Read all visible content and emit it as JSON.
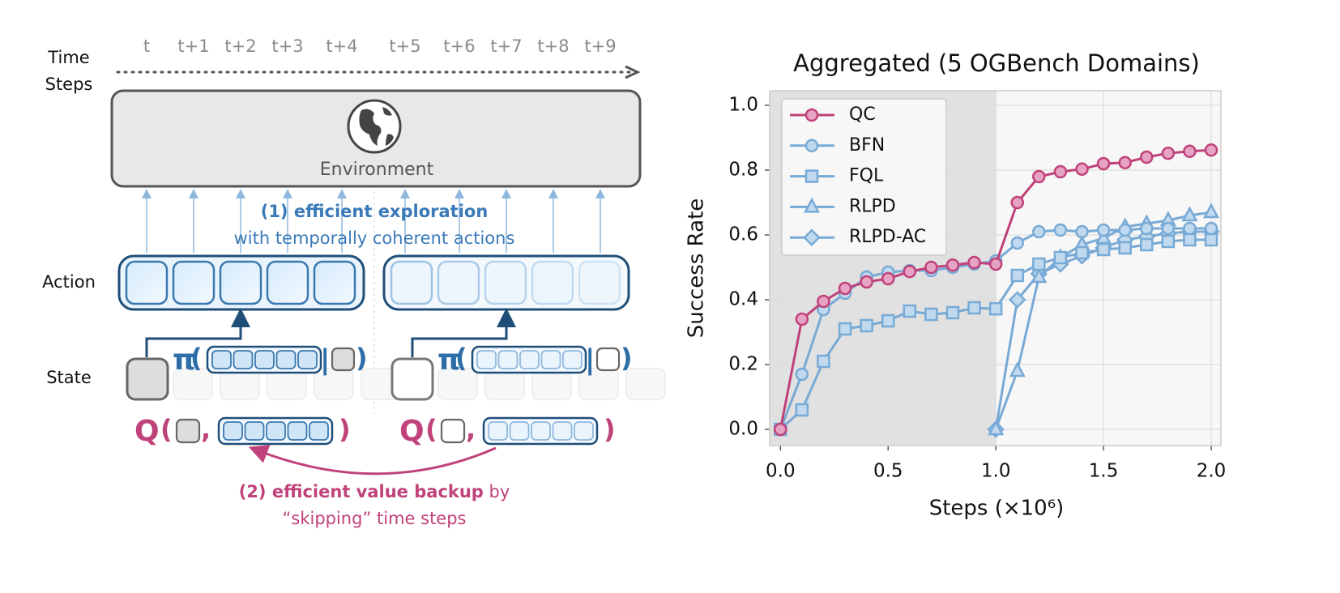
{
  "diagram": {
    "time_label": [
      "Time",
      "Steps"
    ],
    "time_steps": [
      "t",
      "t+1",
      "t+2",
      "t+3",
      "t+4",
      "t+5",
      "t+6",
      "t+7",
      "t+8",
      "t+9"
    ],
    "environment": "Environment",
    "exploration_title": "(1) efficient exploration",
    "exploration_text": "with temporally coherent actions",
    "action_label": "Action",
    "state_label": "State",
    "policy_symbol": "π",
    "q_symbol": "Q",
    "open_paren": "(",
    "close_paren": ")",
    "comma": ",",
    "bar": "|",
    "backup_title": "(2) efficient value backup",
    "backup_by": " by",
    "backup_text": "“skipping” time steps"
  },
  "chart_data": {
    "type": "line",
    "title": "Aggregated (5 OGBench Domains)",
    "xlabel": "Steps (×10⁶)",
    "ylabel": "Success Rate",
    "x": [
      0,
      0.1,
      0.2,
      0.3,
      0.4,
      0.5,
      0.6,
      0.7,
      0.8,
      0.9,
      1.0,
      1.1,
      1.2,
      1.3,
      1.4,
      1.5,
      1.6,
      1.7,
      1.8,
      1.9,
      2.0
    ],
    "series": [
      {
        "name": "QC",
        "color": "#c0427a",
        "marker_fill": "#e7a3c3",
        "marker": "circle",
        "values": [
          0,
          0.34,
          0.395,
          0.435,
          0.455,
          0.465,
          0.487,
          0.5,
          0.507,
          0.515,
          0.51,
          0.7,
          0.78,
          0.795,
          0.803,
          0.82,
          0.823,
          0.84,
          0.852,
          0.858,
          0.862
        ]
      },
      {
        "name": "BFN",
        "color": "#78aad6",
        "marker_fill": "#c0d9ef",
        "marker": "circle",
        "values": [
          0,
          0.17,
          0.37,
          0.42,
          0.47,
          0.485,
          0.49,
          0.49,
          0.5,
          0.51,
          0.52,
          0.575,
          0.61,
          0.615,
          0.61,
          0.615,
          0.615,
          0.62,
          0.62,
          0.62,
          0.62
        ]
      },
      {
        "name": "FQL",
        "color": "#78aad6",
        "marker_fill": "#c0d9ef",
        "marker": "square",
        "values": [
          0,
          0.06,
          0.21,
          0.31,
          0.32,
          0.335,
          0.365,
          0.355,
          0.36,
          0.375,
          0.372,
          0.475,
          0.51,
          0.53,
          0.545,
          0.555,
          0.56,
          0.57,
          0.58,
          0.585,
          0.585
        ]
      },
      {
        "name": "RLPD",
        "color": "#78aad6",
        "marker_fill": "#c0d9ef",
        "marker": "triangle",
        "values": [
          null,
          null,
          null,
          null,
          null,
          null,
          null,
          null,
          null,
          null,
          0,
          0.18,
          0.47,
          0.53,
          0.57,
          0.59,
          0.625,
          0.635,
          0.645,
          0.66,
          0.67
        ]
      },
      {
        "name": "RLPD-AC",
        "color": "#78aad6",
        "marker_fill": "#c0d9ef",
        "marker": "diamond",
        "values": [
          null,
          null,
          null,
          null,
          null,
          null,
          null,
          null,
          null,
          null,
          0,
          0.4,
          0.48,
          0.51,
          0.535,
          0.56,
          0.585,
          0.595,
          0.605,
          0.61,
          0.61
        ]
      }
    ],
    "xlim": [
      -0.05,
      2.045
    ],
    "ylim": [
      -0.05,
      1.045
    ],
    "xticks": [
      {
        "value": 0,
        "label": "0.0"
      },
      0.5,
      {
        "value": 1,
        "label": "1.0"
      },
      1.5,
      {
        "value": 2,
        "label": "2.0"
      }
    ],
    "yticks": [
      {
        "value": 0,
        "label": "0.0"
      },
      0.2,
      0.4,
      0.6,
      0.8,
      {
        "value": 1,
        "label": "1.0"
      }
    ],
    "grid": true,
    "legend": "upper left",
    "shaded_until": 1.0
  }
}
